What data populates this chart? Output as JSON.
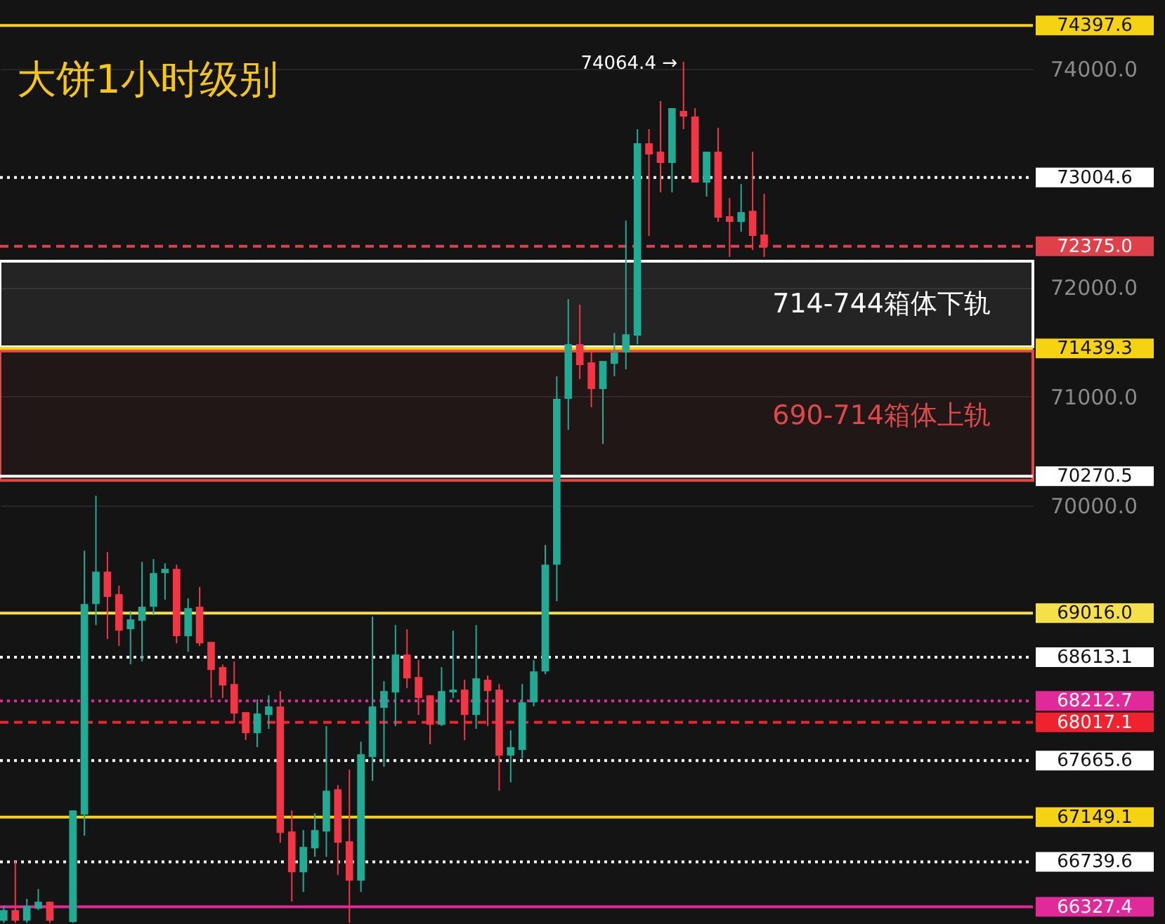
{
  "chart_data": {
    "type": "candlestick",
    "title": "大饼1小时级别",
    "categories": [
      null,
      null,
      null,
      null,
      null,
      null,
      null,
      null,
      null,
      null,
      null,
      null,
      null,
      null,
      null,
      null,
      null,
      null,
      null,
      null,
      null,
      null,
      null,
      null,
      null,
      null,
      null,
      null,
      null,
      null,
      null,
      null,
      null,
      null,
      null,
      null,
      null,
      null,
      null,
      null,
      null,
      null,
      null,
      null,
      null,
      null,
      null,
      null,
      null,
      null,
      null,
      null,
      null,
      null,
      null,
      null,
      null,
      null,
      null,
      null,
      null,
      null,
      null,
      null,
      null,
      null,
      null,
      null,
      null,
      null,
      null,
      null,
      null,
      null,
      null,
      null,
      null,
      null,
      null,
      null,
      null,
      null,
      null,
      null,
      null,
      null,
      null,
      null,
      null,
      null
    ],
    "ohlc": [
      [
        66200,
        66335,
        66180,
        66297
      ],
      [
        66297,
        66747,
        66180,
        66200
      ],
      [
        66200,
        66400,
        66180,
        66335
      ],
      [
        66310,
        66490,
        66297,
        66374
      ],
      [
        66374,
        66374,
        66180,
        66200
      ],
      null,
      [
        66190,
        67210,
        66180,
        67210
      ],
      [
        67171,
        69589,
        66978,
        69100
      ],
      [
        69100,
        70091,
        68907,
        69396
      ],
      [
        69396,
        69576,
        68779,
        69165
      ],
      [
        69190,
        69268,
        68715,
        68856
      ],
      [
        68869,
        69036,
        68547,
        68959
      ],
      [
        68946,
        69486,
        68573,
        69075
      ],
      [
        69075,
        69512,
        68997,
        69383
      ],
      [
        69383,
        69473,
        69139,
        69422
      ],
      [
        69422,
        69460,
        68740,
        68805
      ],
      [
        68805,
        69152,
        68663,
        69062
      ],
      [
        69075,
        69255,
        68715,
        68740
      ],
      [
        68753,
        68753,
        68239,
        68496
      ],
      [
        68522,
        68547,
        68239,
        68354
      ],
      [
        68367,
        68573,
        68007,
        68097
      ],
      [
        68110,
        68110,
        67853,
        67917
      ],
      [
        67917,
        68226,
        67789,
        68097
      ],
      [
        68084,
        68264,
        67956,
        68162
      ],
      [
        68162,
        68303,
        66914,
        67004
      ],
      [
        67017,
        67210,
        66374,
        66644
      ],
      [
        66644,
        67030,
        66464,
        66876
      ],
      [
        66863,
        67184,
        66785,
        67030
      ],
      [
        67017,
        67982,
        66785,
        67390
      ],
      [
        67403,
        67441,
        66618,
        66914
      ],
      [
        66927,
        67583,
        66180,
        66567
      ],
      [
        66567,
        67840,
        66464,
        67724
      ],
      [
        67699,
        68985,
        67480,
        68162
      ],
      [
        68149,
        68393,
        67609,
        68303
      ],
      [
        68290,
        68907,
        67982,
        68637
      ],
      [
        68637,
        68869,
        68329,
        68419
      ],
      [
        68432,
        68586,
        68084,
        68239
      ],
      [
        68264,
        68264,
        67815,
        67994
      ],
      [
        67994,
        68522,
        67982,
        68303
      ],
      [
        68290,
        68856,
        68239,
        68316
      ],
      [
        68316,
        68406,
        67853,
        68084
      ],
      [
        68084,
        68907,
        67956,
        68419
      ],
      [
        68406,
        68445,
        67982,
        68303
      ],
      [
        68316,
        68367,
        67390,
        67712
      ],
      [
        67712,
        67943,
        67467,
        67789
      ],
      [
        67763,
        68367,
        67686,
        68200
      ],
      [
        68200,
        68586,
        68162,
        68483
      ],
      [
        68483,
        69640,
        68457,
        69460
      ],
      [
        69460,
        71184,
        69126,
        70978
      ],
      [
        70978,
        71891,
        70695,
        71479
      ],
      [
        71479,
        71840,
        71158,
        71287
      ],
      [
        71312,
        71415,
        70901,
        71068
      ],
      [
        71068,
        71325,
        70566,
        71325
      ],
      [
        71299,
        71582,
        71184,
        71402
      ],
      [
        71402,
        72611,
        71248,
        71569
      ],
      [
        71557,
        73447,
        71479,
        73318
      ],
      [
        73318,
        73447,
        72470,
        73216
      ],
      [
        73241,
        73704,
        72868,
        73138
      ],
      [
        73138,
        73640,
        72868,
        73640
      ],
      [
        73614,
        74064.4,
        73447,
        73563
      ],
      [
        73563,
        73640,
        72958,
        72958
      ],
      [
        72958,
        73241,
        72830,
        73241
      ],
      [
        73241,
        73460,
        72598,
        72637
      ],
      [
        72650,
        72817,
        72277,
        72598
      ],
      [
        72598,
        72945,
        72508,
        72688
      ],
      [
        72700,
        73241,
        72341,
        72470
      ],
      [
        72483,
        72855,
        72277,
        72375
      ],
      null,
      null,
      null,
      null,
      null,
      null,
      null,
      null,
      null,
      null,
      null,
      null,
      null,
      null,
      null,
      null,
      null,
      null,
      null,
      null,
      null,
      null,
      null
    ],
    "colors": [
      "#22ab94",
      "#f23645",
      "#22ab94",
      "#22ab94",
      "#f23645",
      null,
      "#22ab94",
      "#22ab94",
      "#22ab94",
      "#f23645",
      "#f23645",
      "#22ab94",
      "#22ab94",
      "#22ab94",
      "#22ab94",
      "#f23645",
      "#22ab94",
      "#f23645",
      "#f23645",
      "#f23645",
      "#f23645",
      "#f23645",
      "#22ab94",
      "#22ab94",
      "#f23645",
      "#f23645",
      "#22ab94",
      "#22ab94",
      "#22ab94",
      "#f23645",
      "#f23645",
      "#22ab94",
      "#22ab94",
      "#22ab94",
      "#22ab94",
      "#f23645",
      "#f23645",
      "#f23645",
      "#22ab94",
      "#22ab94",
      "#f23645",
      "#22ab94",
      "#f23645",
      "#f23645",
      "#22ab94",
      "#22ab94",
      "#22ab94",
      "#22ab94",
      "#22ab94",
      "#22ab94",
      "#f23645",
      "#f23645",
      "#22ab94",
      "#22ab94",
      "#22ab94",
      "#22ab94",
      "#f23645",
      "#f23645",
      "#22ab94",
      "#f23645",
      "#f23645",
      "#22ab94",
      "#f23645",
      "#f23645",
      "#22ab94",
      "#f23645",
      "#f23645",
      null,
      null,
      null,
      null,
      null,
      null,
      null,
      null,
      null,
      null,
      null,
      null,
      null,
      null,
      null,
      null,
      null,
      null,
      null,
      null,
      null,
      null,
      null
    ],
    "ylim": [
      66170,
      74630
    ],
    "yticks": [
      {
        "value": 70000,
        "label": "70000.0"
      },
      {
        "value": 71000,
        "label": "71000.0"
      },
      {
        "value": 72000,
        "label": "72000.0"
      },
      {
        "value": 74000,
        "label": "74000.0"
      }
    ],
    "grid": "y",
    "tick_labels": "y",
    "ref_lines": [
      {
        "axis": "y",
        "value": 74397.6,
        "label": "74397.6",
        "color": "#f5d312",
        "line_style": "solid"
      },
      {
        "axis": "y",
        "value": 73004.6,
        "label": "73004.6",
        "color": "#ffffff",
        "line_style": "dotted"
      },
      {
        "axis": "y",
        "value": 72375.0,
        "label": "72375.0",
        "color": "#e0404a",
        "line_style": "dashed"
      },
      {
        "axis": "y",
        "value": 71439.3,
        "label": "71439.3",
        "color": "#f5d312",
        "line_style": "solid"
      },
      {
        "axis": "y",
        "value": 70270.5,
        "label": "70270.5",
        "color": "#ffffff",
        "line_style": "solid"
      },
      {
        "axis": "y",
        "value": 69016.0,
        "label": "69016.0",
        "color": "#f5e04a",
        "line_style": "solid"
      },
      {
        "axis": "y",
        "value": 68613.1,
        "label": "68613.1",
        "color": "#ffffff",
        "line_style": "dotted"
      },
      {
        "axis": "y",
        "value": 68212.7,
        "label": "68212.7",
        "color": "#e02a9a",
        "line_style": "dotted"
      },
      {
        "axis": "y",
        "value": 68017.1,
        "label": "68017.1",
        "color": "#f0222e",
        "line_style": "dashed"
      },
      {
        "axis": "y",
        "value": 67665.6,
        "label": "67665.6",
        "color": "#ffffff",
        "line_style": "dotted"
      },
      {
        "axis": "y",
        "value": 67149.1,
        "label": "67149.1",
        "color": "#f5d312",
        "line_style": "solid"
      },
      {
        "axis": "y",
        "value": 66739.6,
        "label": "66739.6",
        "color": "#ffffff",
        "line_style": "dotted"
      },
      {
        "axis": "y",
        "value": 66327.4,
        "label": "66327.4",
        "color": "#e02a9a",
        "line_style": "solid"
      }
    ],
    "bands": [
      {
        "axis": "y",
        "from": 71454,
        "to": 72238,
        "label": "714-744箱体下轨",
        "color": "#ffffff"
      },
      {
        "axis": "y",
        "from": 70232,
        "to": 71415,
        "label": "690-714箱体上轨",
        "color": "#e04848"
      }
    ],
    "annotations": [
      "74064.4 →"
    ]
  }
}
